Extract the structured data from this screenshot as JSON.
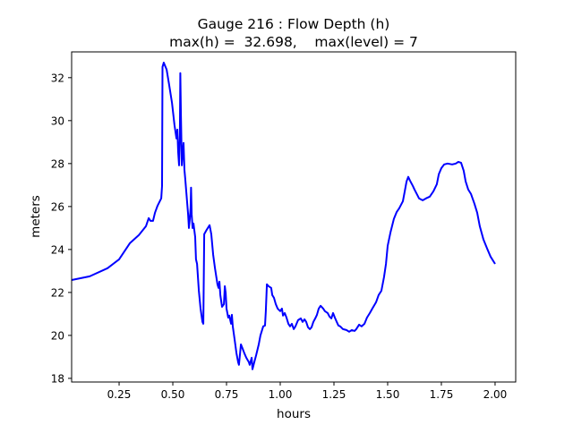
{
  "chart_data": {
    "type": "line",
    "title": [
      "Gauge 216 : Flow Depth (h)",
      "max(h) =  32.698,    max(level) = 7"
    ],
    "xlabel": "hours",
    "ylabel": "meters",
    "xlim": [
      0.029,
      2.096
    ],
    "ylim": [
      17.83,
      33.2
    ],
    "xticks": [
      0.25,
      0.5,
      0.75,
      1.0,
      1.25,
      1.5,
      1.75,
      2.0
    ],
    "xtick_labels": [
      "0.25",
      "0.50",
      "0.75",
      "1.00",
      "1.25",
      "1.50",
      "1.75",
      "2.00"
    ],
    "yticks": [
      18,
      20,
      22,
      24,
      26,
      28,
      30,
      32
    ],
    "ytick_labels": [
      "18",
      "20",
      "22",
      "24",
      "26",
      "28",
      "30",
      "32"
    ],
    "grid": false,
    "line_color": "#0000ff",
    "series": [
      {
        "points": [
          [
            0.029,
            22.58
          ],
          [
            0.113,
            22.75
          ],
          [
            0.196,
            23.13
          ],
          [
            0.25,
            23.54
          ],
          [
            0.3,
            24.29
          ],
          [
            0.342,
            24.67
          ],
          [
            0.375,
            25.08
          ],
          [
            0.388,
            25.46
          ],
          [
            0.396,
            25.33
          ],
          [
            0.408,
            25.33
          ],
          [
            0.417,
            25.71
          ],
          [
            0.429,
            26.04
          ],
          [
            0.446,
            26.38
          ],
          [
            0.45,
            26.96
          ],
          [
            0.452,
            32.5
          ],
          [
            0.458,
            32.7
          ],
          [
            0.471,
            32.38
          ],
          [
            0.483,
            31.67
          ],
          [
            0.496,
            30.83
          ],
          [
            0.508,
            29.79
          ],
          [
            0.517,
            29.17
          ],
          [
            0.521,
            29.58
          ],
          [
            0.525,
            28.54
          ],
          [
            0.529,
            27.92
          ],
          [
            0.533,
            29.38
          ],
          [
            0.535,
            32.21
          ],
          [
            0.538,
            30.21
          ],
          [
            0.542,
            27.92
          ],
          [
            0.546,
            28.54
          ],
          [
            0.55,
            28.96
          ],
          [
            0.554,
            27.71
          ],
          [
            0.558,
            27.29
          ],
          [
            0.563,
            26.67
          ],
          [
            0.571,
            25.63
          ],
          [
            0.575,
            25.0
          ],
          [
            0.579,
            25.42
          ],
          [
            0.583,
            25.96
          ],
          [
            0.585,
            26.88
          ],
          [
            0.588,
            25.63
          ],
          [
            0.592,
            25.0
          ],
          [
            0.596,
            25.21
          ],
          [
            0.604,
            24.58
          ],
          [
            0.608,
            23.54
          ],
          [
            0.613,
            23.33
          ],
          [
            0.621,
            22.08
          ],
          [
            0.629,
            21.25
          ],
          [
            0.638,
            20.63
          ],
          [
            0.642,
            20.54
          ],
          [
            0.646,
            24.71
          ],
          [
            0.658,
            24.92
          ],
          [
            0.671,
            25.13
          ],
          [
            0.679,
            24.71
          ],
          [
            0.688,
            23.75
          ],
          [
            0.696,
            23.13
          ],
          [
            0.708,
            22.38
          ],
          [
            0.713,
            22.21
          ],
          [
            0.717,
            22.5
          ],
          [
            0.721,
            21.88
          ],
          [
            0.729,
            21.33
          ],
          [
            0.738,
            21.46
          ],
          [
            0.742,
            22.29
          ],
          [
            0.746,
            21.96
          ],
          [
            0.75,
            21.25
          ],
          [
            0.758,
            20.83
          ],
          [
            0.763,
            20.92
          ],
          [
            0.771,
            20.54
          ],
          [
            0.775,
            20.96
          ],
          [
            0.779,
            20.42
          ],
          [
            0.788,
            19.79
          ],
          [
            0.796,
            19.17
          ],
          [
            0.804,
            18.75
          ],
          [
            0.808,
            18.63
          ],
          [
            0.817,
            19.58
          ],
          [
            0.825,
            19.38
          ],
          [
            0.833,
            19.17
          ],
          [
            0.842,
            18.96
          ],
          [
            0.854,
            18.75
          ],
          [
            0.858,
            18.63
          ],
          [
            0.867,
            18.96
          ],
          [
            0.871,
            18.42
          ],
          [
            0.879,
            18.75
          ],
          [
            0.888,
            19.08
          ],
          [
            0.9,
            19.58
          ],
          [
            0.908,
            20.0
          ],
          [
            0.921,
            20.42
          ],
          [
            0.929,
            20.46
          ],
          [
            0.933,
            21.13
          ],
          [
            0.938,
            22.38
          ],
          [
            0.946,
            22.29
          ],
          [
            0.958,
            22.21
          ],
          [
            0.963,
            21.88
          ],
          [
            0.971,
            21.75
          ],
          [
            0.979,
            21.46
          ],
          [
            0.988,
            21.25
          ],
          [
            1.0,
            21.13
          ],
          [
            1.008,
            21.25
          ],
          [
            1.013,
            20.92
          ],
          [
            1.021,
            21.04
          ],
          [
            1.029,
            20.83
          ],
          [
            1.038,
            20.54
          ],
          [
            1.046,
            20.42
          ],
          [
            1.054,
            20.54
          ],
          [
            1.063,
            20.29
          ],
          [
            1.071,
            20.42
          ],
          [
            1.083,
            20.71
          ],
          [
            1.096,
            20.79
          ],
          [
            1.104,
            20.63
          ],
          [
            1.113,
            20.75
          ],
          [
            1.121,
            20.63
          ],
          [
            1.129,
            20.38
          ],
          [
            1.138,
            20.29
          ],
          [
            1.146,
            20.38
          ],
          [
            1.154,
            20.63
          ],
          [
            1.163,
            20.79
          ],
          [
            1.171,
            20.96
          ],
          [
            1.179,
            21.25
          ],
          [
            1.188,
            21.38
          ],
          [
            1.2,
            21.25
          ],
          [
            1.208,
            21.13
          ],
          [
            1.221,
            21.04
          ],
          [
            1.229,
            20.88
          ],
          [
            1.238,
            20.79
          ],
          [
            1.246,
            21.04
          ],
          [
            1.254,
            20.83
          ],
          [
            1.263,
            20.63
          ],
          [
            1.271,
            20.46
          ],
          [
            1.279,
            20.42
          ],
          [
            1.292,
            20.29
          ],
          [
            1.308,
            20.25
          ],
          [
            1.321,
            20.17
          ],
          [
            1.333,
            20.25
          ],
          [
            1.346,
            20.21
          ],
          [
            1.354,
            20.29
          ],
          [
            1.367,
            20.5
          ],
          [
            1.379,
            20.42
          ],
          [
            1.392,
            20.54
          ],
          [
            1.404,
            20.83
          ],
          [
            1.417,
            21.04
          ],
          [
            1.429,
            21.25
          ],
          [
            1.446,
            21.54
          ],
          [
            1.458,
            21.88
          ],
          [
            1.471,
            22.08
          ],
          [
            1.483,
            22.71
          ],
          [
            1.492,
            23.33
          ],
          [
            1.5,
            24.17
          ],
          [
            1.513,
            24.79
          ],
          [
            1.529,
            25.42
          ],
          [
            1.542,
            25.75
          ],
          [
            1.554,
            25.92
          ],
          [
            1.571,
            26.25
          ],
          [
            1.579,
            26.67
          ],
          [
            1.588,
            27.17
          ],
          [
            1.596,
            27.38
          ],
          [
            1.604,
            27.21
          ],
          [
            1.617,
            26.96
          ],
          [
            1.625,
            26.79
          ],
          [
            1.638,
            26.54
          ],
          [
            1.646,
            26.38
          ],
          [
            1.663,
            26.29
          ],
          [
            1.679,
            26.38
          ],
          [
            1.696,
            26.46
          ],
          [
            1.713,
            26.71
          ],
          [
            1.729,
            27.04
          ],
          [
            1.738,
            27.5
          ],
          [
            1.75,
            27.79
          ],
          [
            1.763,
            27.96
          ],
          [
            1.779,
            28.0
          ],
          [
            1.8,
            27.96
          ],
          [
            1.817,
            28.0
          ],
          [
            1.829,
            28.08
          ],
          [
            1.842,
            28.04
          ],
          [
            1.854,
            27.67
          ],
          [
            1.863,
            27.17
          ],
          [
            1.875,
            26.79
          ],
          [
            1.888,
            26.58
          ],
          [
            1.904,
            26.13
          ],
          [
            1.917,
            25.71
          ],
          [
            1.929,
            25.08
          ],
          [
            1.946,
            24.46
          ],
          [
            1.963,
            24.04
          ],
          [
            1.979,
            23.67
          ],
          [
            2.0,
            23.33
          ]
        ]
      }
    ]
  }
}
